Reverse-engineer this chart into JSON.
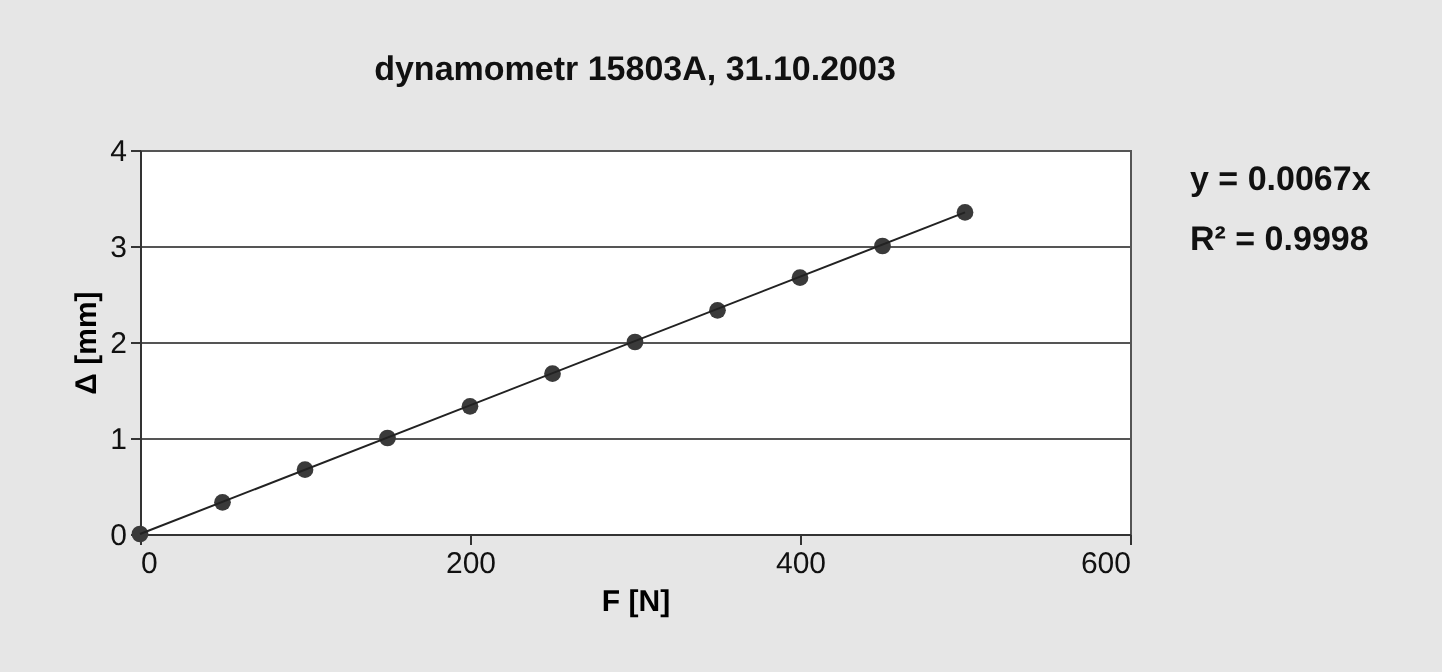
{
  "chart_data": {
    "type": "scatter",
    "title": "dynamometr 15803A, 31.10.2003",
    "xlabel": "F [N]",
    "ylabel": "Δ [mm]",
    "x": [
      0,
      50,
      100,
      150,
      200,
      250,
      300,
      350,
      400,
      450,
      500
    ],
    "series": [
      {
        "color": "#3a3a3a",
        "marker": "circle",
        "values": [
          0,
          0.33,
          0.67,
          1.0,
          1.33,
          1.67,
          2.0,
          2.33,
          2.67,
          3.0,
          3.35
        ]
      },
      {
        "type": "line",
        "color": "#222222",
        "marker": "none",
        "line_style": "solid",
        "x": [
          0,
          500
        ],
        "values": [
          0,
          3.35
        ]
      }
    ],
    "xlim": [
      0,
      600
    ],
    "xticks": [
      0,
      200,
      400,
      600
    ],
    "ylim": [
      0,
      4
    ],
    "yticks": [
      0,
      1,
      2,
      3,
      4
    ],
    "grid": "y",
    "annotations": [
      "y = 0.0067x",
      "R² = 0.9998"
    ]
  }
}
